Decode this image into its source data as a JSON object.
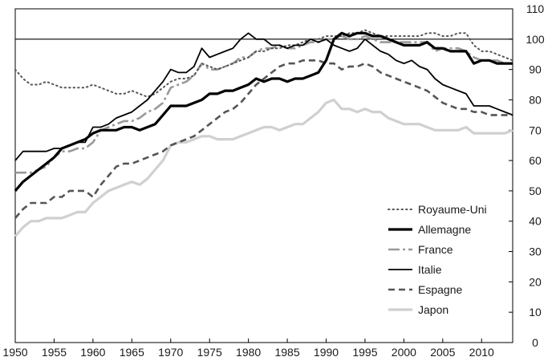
{
  "chart_data": {
    "type": "line",
    "title": "",
    "xlabel": "",
    "ylabel": "",
    "xlim": [
      1950,
      2014
    ],
    "ylim": [
      0,
      110
    ],
    "x_ticks": [
      1950,
      1955,
      1960,
      1965,
      1970,
      1975,
      1980,
      1985,
      1990,
      1995,
      2000,
      2005,
      2010
    ],
    "y_ticks": [
      0,
      10,
      20,
      30,
      40,
      50,
      60,
      70,
      80,
      90,
      100,
      110
    ],
    "y_axis_side": "right",
    "reference_line": 100,
    "grid": false,
    "legend_position": "bottom-right",
    "x": [
      1950,
      1951,
      1952,
      1953,
      1954,
      1955,
      1956,
      1957,
      1958,
      1959,
      1960,
      1961,
      1962,
      1963,
      1964,
      1965,
      1966,
      1967,
      1968,
      1969,
      1970,
      1971,
      1972,
      1973,
      1974,
      1975,
      1976,
      1977,
      1978,
      1979,
      1980,
      1981,
      1982,
      1983,
      1984,
      1985,
      1986,
      1987,
      1988,
      1989,
      1990,
      1991,
      1992,
      1993,
      1994,
      1995,
      1996,
      1997,
      1998,
      1999,
      2000,
      2001,
      2002,
      2003,
      2004,
      2005,
      2006,
      2007,
      2008,
      2009,
      2010,
      2011,
      2012,
      2013,
      2014
    ],
    "series": [
      {
        "name": "Royaume-Uni",
        "color": "#555555",
        "style": "dotted",
        "values": [
          90,
          87,
          85,
          85,
          86,
          85,
          84,
          84,
          84,
          84,
          85,
          84,
          83,
          82,
          82,
          83,
          82,
          81,
          82,
          84,
          86,
          87,
          87,
          88,
          92,
          91,
          90,
          91,
          92,
          93,
          94,
          96,
          96,
          97,
          97,
          98,
          98,
          99,
          100,
          100,
          101,
          101,
          101,
          102,
          102,
          103,
          102,
          101,
          101,
          101,
          101,
          101,
          101,
          102,
          102,
          101,
          101,
          102,
          102,
          98,
          96,
          96,
          95,
          94,
          93
        ]
      },
      {
        "name": "Allemagne",
        "color": "#000000",
        "style": "thick",
        "values": [
          50,
          53,
          55,
          57,
          59,
          61,
          64,
          65,
          66,
          67,
          69,
          70,
          70,
          70,
          71,
          71,
          70,
          71,
          72,
          75,
          78,
          78,
          78,
          79,
          80,
          82,
          82,
          83,
          83,
          84,
          85,
          87,
          86,
          87,
          87,
          86,
          87,
          87,
          88,
          89,
          93,
          100,
          102,
          101,
          102,
          102,
          101,
          101,
          100,
          99,
          98,
          98,
          98,
          99,
          97,
          97,
          96,
          96,
          96,
          92,
          93,
          93,
          92,
          92,
          92
        ]
      },
      {
        "name": "France",
        "color": "#999999",
        "style": "dashdot",
        "values": [
          56,
          56,
          56,
          57,
          58,
          61,
          63,
          63,
          64,
          64,
          66,
          70,
          71,
          72,
          73,
          73,
          74,
          76,
          77,
          79,
          84,
          85,
          86,
          88,
          92,
          90,
          90,
          91,
          92,
          94,
          94,
          96,
          97,
          97,
          98,
          97,
          97,
          98,
          99,
          99,
          100,
          100,
          101,
          100,
          100,
          101,
          100,
          99,
          99,
          99,
          99,
          99,
          99,
          99,
          96,
          97,
          97,
          97,
          96,
          94,
          93,
          93,
          93,
          92,
          92
        ]
      },
      {
        "name": "Italie",
        "color": "#000000",
        "style": "solid",
        "values": [
          60,
          63,
          63,
          63,
          63,
          64,
          64,
          65,
          66,
          66,
          71,
          71,
          72,
          74,
          75,
          76,
          78,
          80,
          83,
          86,
          90,
          89,
          89,
          91,
          97,
          94,
          95,
          96,
          97,
          100,
          102,
          100,
          100,
          98,
          98,
          97,
          98,
          98,
          100,
          99,
          100,
          98,
          97,
          96,
          97,
          100,
          98,
          96,
          95,
          93,
          92,
          93,
          91,
          90,
          87,
          85,
          84,
          83,
          82,
          78,
          78,
          78,
          77,
          76,
          75
        ]
      },
      {
        "name": "Espagne",
        "color": "#555555",
        "style": "dashed",
        "values": [
          41,
          44,
          46,
          46,
          46,
          48,
          48,
          50,
          50,
          50,
          48,
          52,
          55,
          58,
          59,
          59,
          60,
          61,
          62,
          63,
          65,
          66,
          67,
          68,
          70,
          72,
          74,
          76,
          77,
          79,
          82,
          85,
          87,
          89,
          91,
          92,
          92,
          93,
          93,
          93,
          92,
          92,
          90,
          91,
          91,
          92,
          91,
          89,
          88,
          87,
          86,
          85,
          84,
          83,
          81,
          79,
          78,
          77,
          77,
          76,
          76,
          75,
          75,
          75,
          75
        ]
      },
      {
        "name": "Japon",
        "color": "#d0d0d0",
        "style": "thick",
        "values": [
          35,
          38,
          40,
          40,
          41,
          41,
          41,
          42,
          43,
          43,
          46,
          48,
          50,
          51,
          52,
          53,
          52,
          54,
          57,
          60,
          65,
          66,
          66,
          67,
          68,
          68,
          67,
          67,
          67,
          68,
          69,
          70,
          71,
          71,
          70,
          71,
          72,
          72,
          74,
          76,
          79,
          80,
          77,
          77,
          76,
          77,
          76,
          76,
          74,
          73,
          72,
          72,
          72,
          71,
          70,
          70,
          70,
          70,
          71,
          69,
          69,
          69,
          69,
          69,
          70
        ]
      }
    ]
  }
}
